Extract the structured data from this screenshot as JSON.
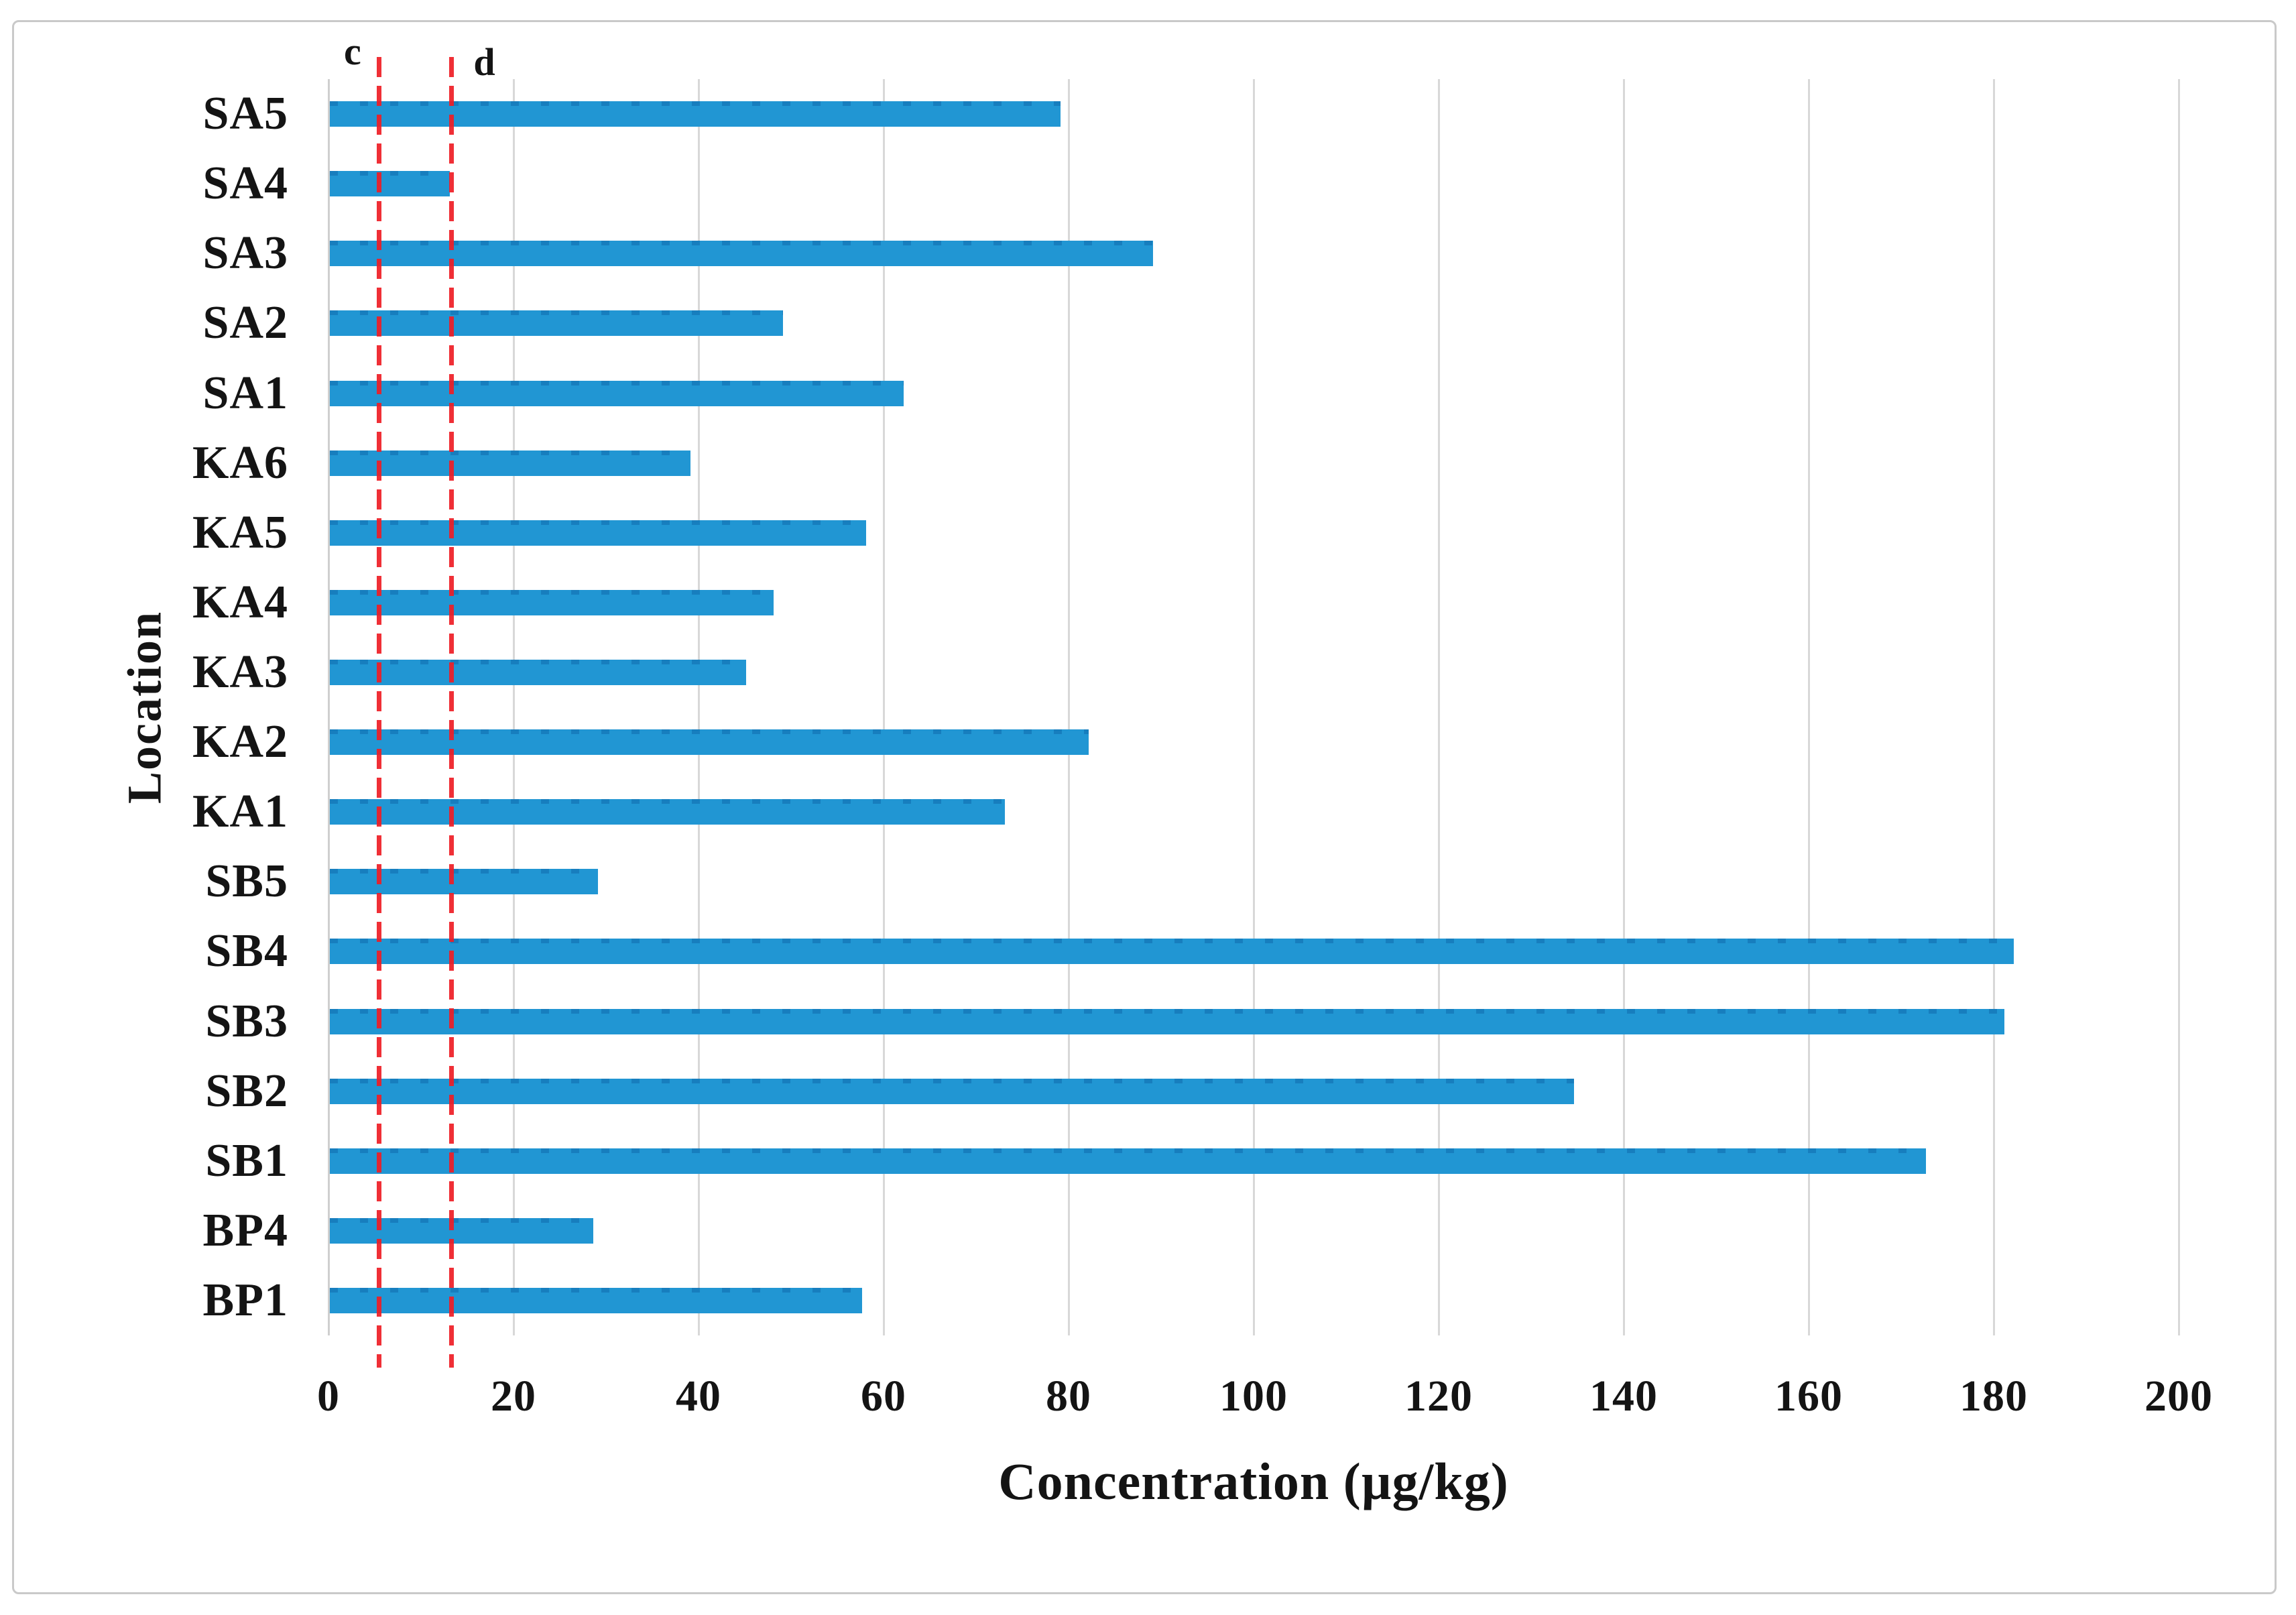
{
  "figure": {
    "background": "#ffffff",
    "border_color": "#c9c9c9"
  },
  "chart_data": {
    "type": "bar",
    "orientation": "horizontal",
    "title": "",
    "xlabel": "Concentration (µg/kg)",
    "ylabel": "Location",
    "categories": [
      "SA5",
      "SA4",
      "SA3",
      "SA2",
      "SA1",
      "KA6",
      "KA5",
      "KA4",
      "KA3",
      "KA2",
      "KA1",
      "SB5",
      "SB4",
      "SB3",
      "SB2",
      "SB1",
      "BP4",
      "BP1"
    ],
    "values": [
      79,
      13,
      89,
      49,
      62,
      39,
      58,
      48,
      45,
      82,
      73,
      29,
      182,
      181,
      134.5,
      172.5,
      28.5,
      57.5
    ],
    "xlim": [
      0,
      200
    ],
    "xticks": [
      0,
      20,
      40,
      60,
      80,
      100,
      120,
      140,
      160,
      180,
      200
    ],
    "grid": "vertical-only",
    "legend": "none",
    "bar_color": "#2196d3",
    "gridline_color": "#d8d8d8",
    "reference_lines": [
      {
        "label": "c",
        "x": 5.5,
        "color": "#ee1d25",
        "style": "dashed"
      },
      {
        "label": "d",
        "x": 13.3,
        "color": "#ee1d25",
        "style": "dashed"
      }
    ]
  }
}
